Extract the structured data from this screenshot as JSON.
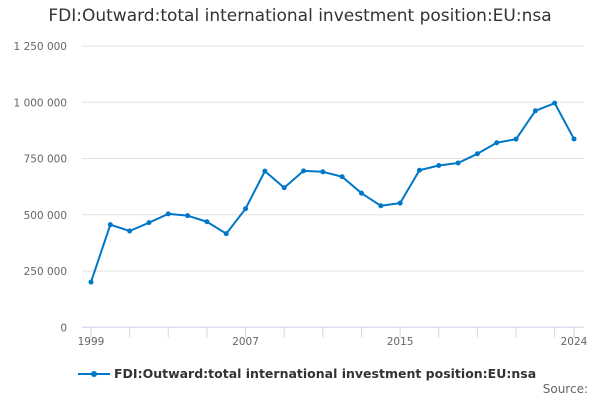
{
  "chart_data": {
    "type": "line",
    "title": "FDI:Outward:total international investment position:EU:nsa",
    "xlabel": "",
    "ylabel": "",
    "ylim": [
      0,
      1250000
    ],
    "yticks": [
      0,
      250000,
      500000,
      750000,
      1000000,
      1250000
    ],
    "ytick_labels": [
      "0",
      "250 000",
      "500 000",
      "750 000",
      "1 000 000",
      "1 250 000"
    ],
    "xtick_labels": [
      "1999",
      "2007",
      "2015",
      "2024"
    ],
    "xlim": [
      1999,
      2024
    ],
    "grid": true,
    "legend_position": "bottom-left",
    "x": [
      1999,
      2000,
      2001,
      2002,
      2003,
      2004,
      2005,
      2006,
      2007,
      2008,
      2009,
      2010,
      2011,
      2012,
      2013,
      2014,
      2015,
      2016,
      2017,
      2018,
      2019,
      2020,
      2021,
      2022,
      2023,
      2024
    ],
    "series": [
      {
        "name": "FDI:Outward:total international investment position:EU:nsa",
        "color": "#0077c8",
        "values": [
          201000,
          456000,
          428000,
          465000,
          504000,
          496000,
          469000,
          416000,
          527000,
          694000,
          620000,
          695000,
          691000,
          669000,
          596000,
          540000,
          552000,
          698000,
          719000,
          730000,
          771000,
          820000,
          836000,
          962000,
          996000,
          837000
        ]
      }
    ]
  },
  "source_label": "Source:"
}
